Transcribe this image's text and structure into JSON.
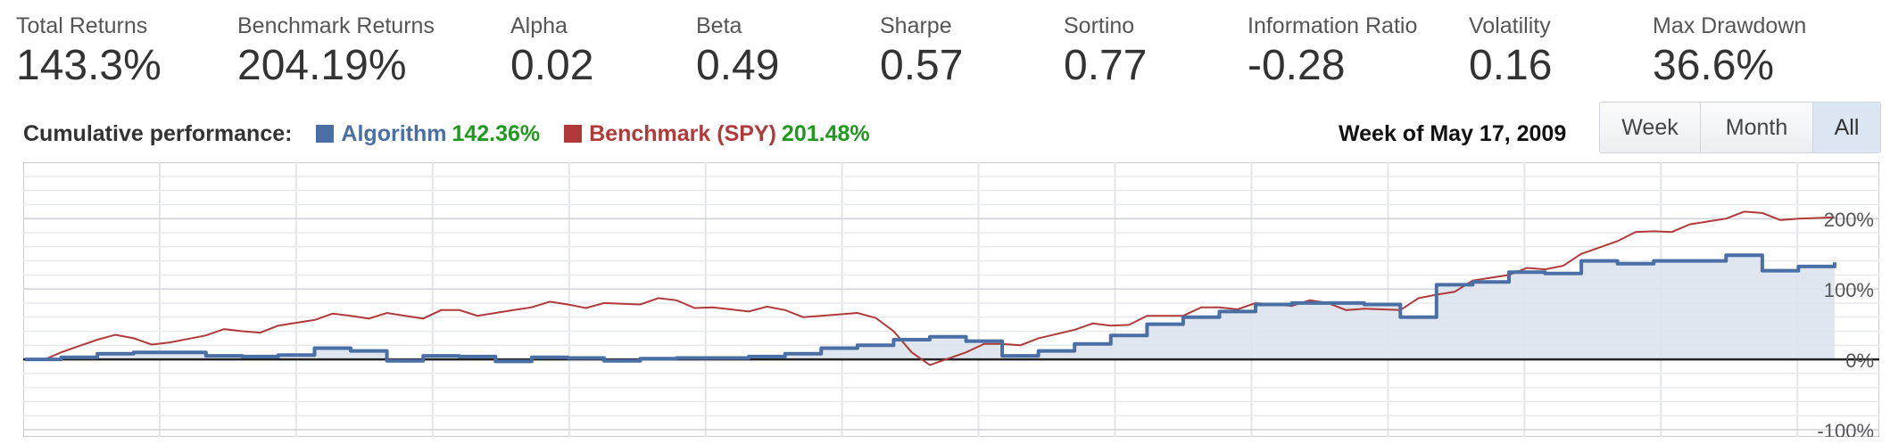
{
  "stats": [
    {
      "label": "Total Returns",
      "value": "143.3%"
    },
    {
      "label": "Benchmark Returns",
      "value": "204.19%"
    },
    {
      "label": "Alpha",
      "value": "0.02"
    },
    {
      "label": "Beta",
      "value": "0.49"
    },
    {
      "label": "Sharpe",
      "value": "0.57"
    },
    {
      "label": "Sortino",
      "value": "0.77"
    },
    {
      "label": "Information Ratio",
      "value": "-0.28"
    },
    {
      "label": "Volatility",
      "value": "0.16"
    },
    {
      "label": "Max Drawdown",
      "value": "36.6%"
    }
  ],
  "legend": {
    "label": "Cumulative performance:",
    "algorithm_name": "Algorithm",
    "algorithm_value": "142.36%",
    "benchmark_name": "Benchmark (SPY)",
    "benchmark_value": "201.48%"
  },
  "week_label": "Week of May 17, 2009",
  "range_buttons": [
    {
      "label": "Week",
      "active": false
    },
    {
      "label": "Month",
      "active": false
    },
    {
      "label": "All",
      "active": true
    }
  ],
  "colors": {
    "algorithm": "#4a6fa5",
    "benchmark": "#b03a3a",
    "area_fill": "#dde3ee",
    "value_green": "#1f9a1f"
  },
  "chart_data": {
    "type": "line",
    "ylim": [
      -100,
      270
    ],
    "ytick_labels": [
      "200%",
      "100%",
      "0%",
      "-100%"
    ],
    "yticks": [
      200,
      100,
      0,
      -100
    ],
    "x": [
      0,
      2,
      4,
      6,
      8,
      10,
      12,
      14,
      16,
      18,
      20,
      22,
      24,
      26,
      28,
      30,
      32,
      34,
      36,
      38,
      40,
      42,
      44,
      46,
      48,
      50,
      52,
      54,
      56,
      58,
      60,
      62,
      64,
      66,
      68,
      70,
      72,
      74,
      76,
      78,
      80,
      82,
      84,
      86,
      88,
      90,
      92,
      94,
      96,
      98,
      100
    ],
    "series": [
      {
        "name": "Algorithm",
        "values": [
          0,
          3,
          8,
          10,
          10,
          5,
          4,
          6,
          16,
          12,
          -2,
          5,
          4,
          -3,
          3,
          2,
          -2,
          1,
          2,
          2,
          4,
          8,
          16,
          20,
          28,
          32,
          26,
          5,
          12,
          22,
          34,
          50,
          60,
          68,
          78,
          80,
          80,
          78,
          60,
          106,
          110,
          124,
          122,
          140,
          136,
          140,
          140,
          148,
          126,
          132,
          138
        ]
      },
      {
        "name": "Benchmark (SPY)",
        "values": [
          0,
          10,
          28,
          30,
          24,
          34,
          40,
          48,
          56,
          62,
          66,
          58,
          70,
          66,
          74,
          78,
          80,
          78,
          84,
          74,
          68,
          70,
          62,
          66,
          40,
          -8,
          10,
          22,
          30,
          42,
          48,
          62,
          62,
          74,
          80,
          76,
          80,
          72,
          70,
          92,
          112,
          120,
          128,
          150,
          168,
          182,
          192,
          200,
          208,
          200,
          202
        ]
      }
    ]
  }
}
